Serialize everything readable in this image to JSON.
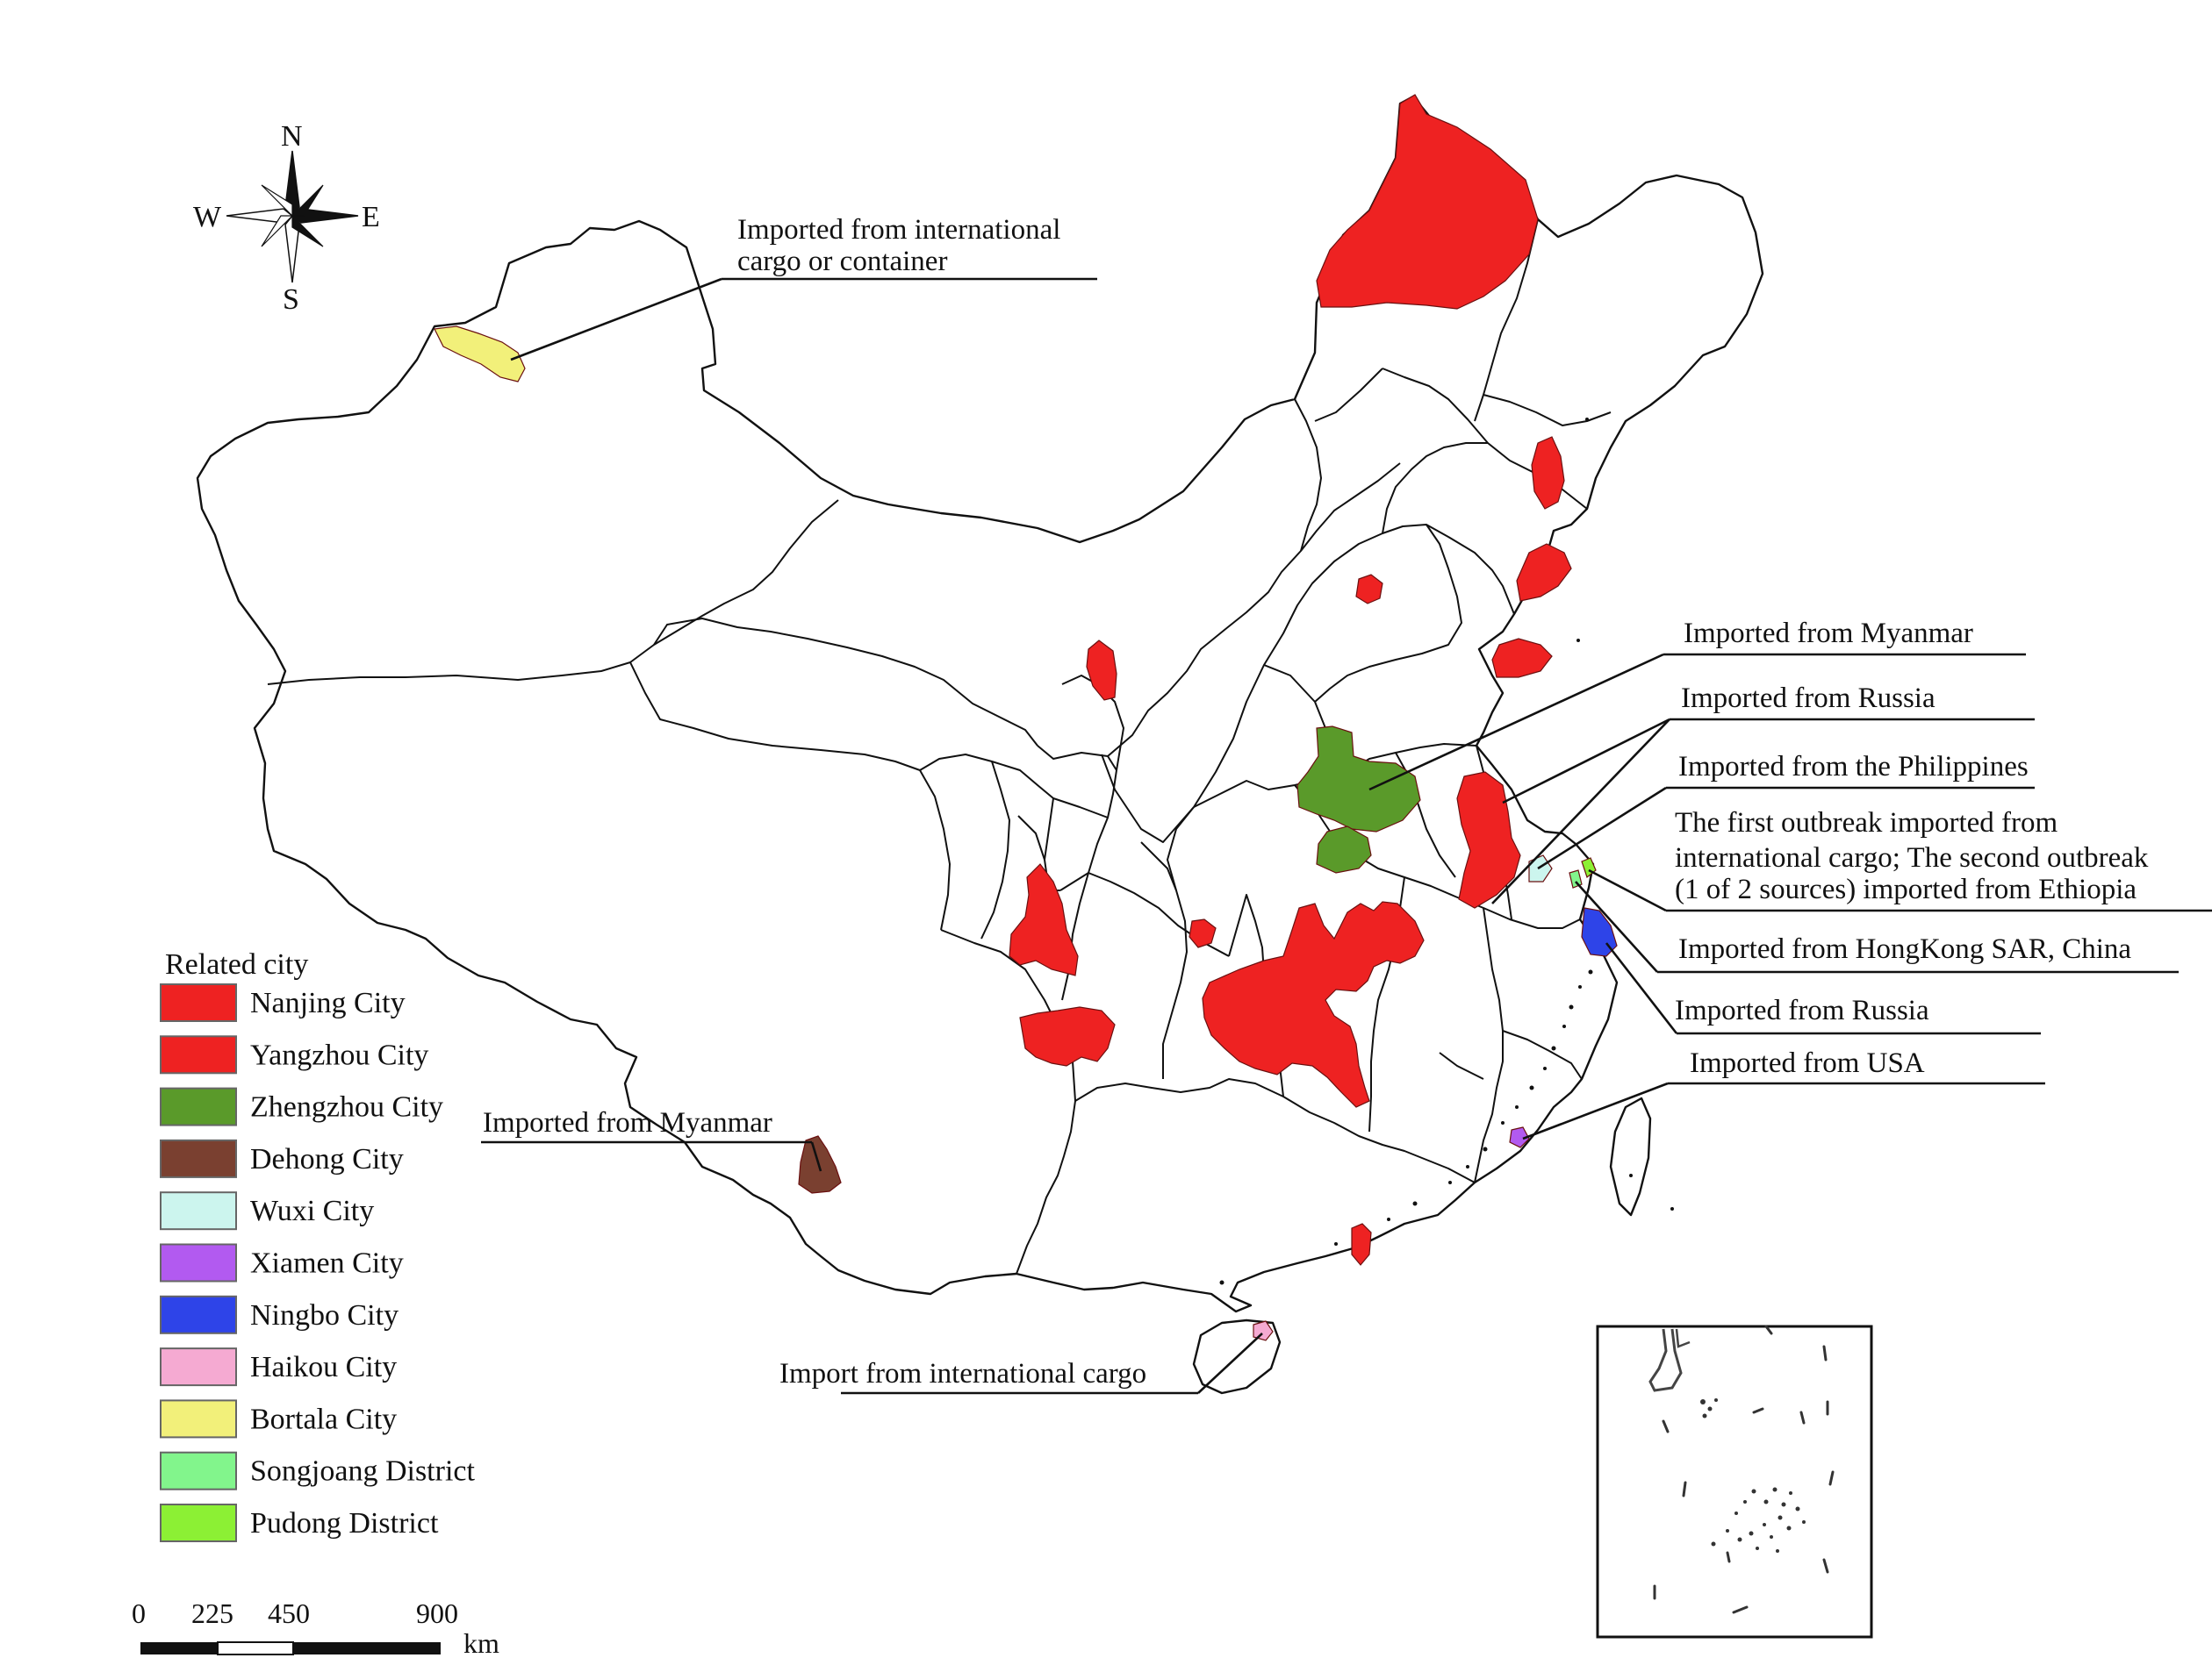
{
  "compass": {
    "n": "N",
    "s": "S",
    "e": "E",
    "w": "W"
  },
  "legend": {
    "title": "Related city",
    "items": [
      {
        "label": "Nanjing City",
        "color": "#ee2222"
      },
      {
        "label": "Yangzhou City",
        "color": "#ee2222"
      },
      {
        "label": "Zhengzhou City",
        "color": "#5a9a2a"
      },
      {
        "label": "Dehong City",
        "color": "#7a4030"
      },
      {
        "label": "Wuxi City",
        "color": "#ccf5ee"
      },
      {
        "label": "Xiamen City",
        "color": "#b25af0"
      },
      {
        "label": "Ningbo City",
        "color": "#2e44e8"
      },
      {
        "label": "Haikou City",
        "color": "#f5aad2"
      },
      {
        "label": "Bortala City",
        "color": "#f2f07a"
      },
      {
        "label": "Songjoang District",
        "color": "#82f58c"
      },
      {
        "label": "Pudong District",
        "color": "#8cf034"
      }
    ]
  },
  "annotations": {
    "bortala_1": "Imported from international",
    "bortala_2": "cargo or container",
    "zhengzhou": "Imported from Myanmar",
    "nanjing": "Imported from Russia",
    "yangzhou": "Imported from the Philippines",
    "pudong_1": "The first outbreak imported from",
    "pudong_2": "international cargo; The second outbreak",
    "pudong_3": "(1 of 2 sources) imported from Ethiopia",
    "songjiang": "Imported from HongKong SAR, China",
    "ningbo": "Imported from Russia",
    "xiamen": "Imported from USA",
    "dehong": "Imported from Myanmar",
    "haikou": "Import from international cargo"
  },
  "scale_bar": {
    "t0": "0",
    "t1": "225",
    "t2": "450",
    "t3": "900",
    "unit": "km"
  }
}
